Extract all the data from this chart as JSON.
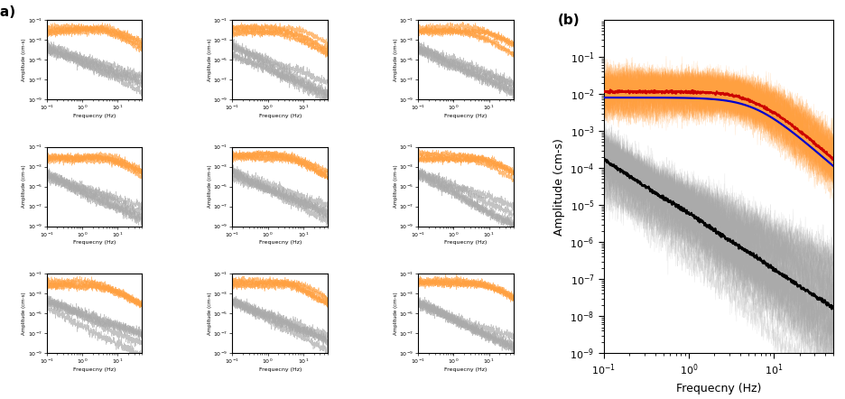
{
  "fig_width": 9.37,
  "fig_height": 4.42,
  "dpi": 100,
  "panel_a_label": "(a)",
  "panel_b_label": "(b)",
  "xlabel": "Frequecny (Hz)",
  "ylabel_small": "Amplitude (cm-s)",
  "ylabel_b": "Amplitude (cm-s)",
  "xlim": [
    0.1,
    50
  ],
  "ylim_small": [
    1e-09,
    0.1
  ],
  "ylim_b": [
    1e-09,
    1.0
  ],
  "orange_color": "#FFA040",
  "gray_color": "#AAAAAA",
  "red_color": "#CC0000",
  "black_color": "#000000",
  "blue_color": "#0000CC",
  "seed": 42,
  "freq_min": 0.1,
  "freq_max": 50,
  "n_freq": 800
}
